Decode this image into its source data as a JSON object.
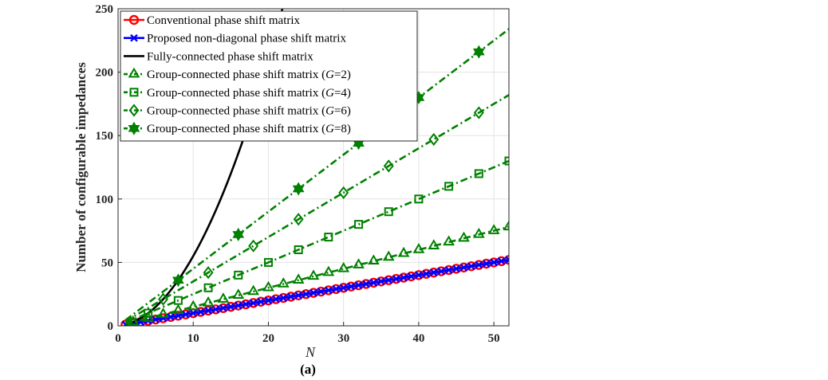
{
  "chart_data": {
    "type": "line",
    "caption": "(a)",
    "xlabel": "N",
    "ylabel": "Number of configurable impedances",
    "xlim": [
      0,
      52
    ],
    "ylim": [
      0,
      250
    ],
    "xticks": [
      "0",
      "10",
      "20",
      "30",
      "40",
      "50"
    ],
    "yticks": [
      "0",
      "50",
      "100",
      "150",
      "200",
      "250"
    ],
    "grid": true,
    "legend_position": "top-left",
    "series": [
      {
        "name": "Conventional phase shift matrix",
        "legend_prefix": "Conventional phase shift matrix",
        "legend_italic": "",
        "legend_suffix": "",
        "formula": "N",
        "color": "#ff0000",
        "marker": "circle",
        "line": "solid",
        "step": 1,
        "x_start": 1,
        "x_end": 52
      },
      {
        "name": "Proposed non-diagonal phase shift matrix",
        "legend_prefix": "Proposed non-diagonal phase shift matrix",
        "legend_italic": "",
        "legend_suffix": "",
        "formula": "N",
        "color": "#0000ff",
        "marker": "x",
        "line": "solid",
        "step": 1,
        "x_start": 1,
        "x_end": 52
      },
      {
        "name": "Fully-connected phase shift matrix",
        "legend_prefix": "Fully-connected phase shift matrix",
        "legend_italic": "",
        "legend_suffix": "",
        "formula": "N(N+1)/2",
        "color": "#000000",
        "marker": "none",
        "line": "solid",
        "step": 1,
        "x_start": 1,
        "x_end": 52
      },
      {
        "name": "Group-connected phase shift matrix (G=2)",
        "legend_prefix": "Group-connected phase shift matrix (",
        "legend_italic": "G",
        "legend_suffix": "=2)",
        "formula": "N(G+1)/2",
        "G": 2,
        "color": "#008000",
        "marker": "triangle",
        "line": "dashdot",
        "step": 2,
        "x_start": 2,
        "x_end": 52
      },
      {
        "name": "Group-connected phase shift matrix (G=4)",
        "legend_prefix": "Group-connected phase shift matrix (",
        "legend_italic": "G",
        "legend_suffix": "=4)",
        "formula": "N(G+1)/2",
        "G": 4,
        "color": "#008000",
        "marker": "square",
        "line": "dashdot",
        "step": 4,
        "x_start": 4,
        "x_end": 52
      },
      {
        "name": "Group-connected phase shift matrix (G=6)",
        "legend_prefix": "Group-connected phase shift matrix (",
        "legend_italic": "G",
        "legend_suffix": "=6)",
        "formula": "N(G+1)/2",
        "G": 6,
        "color": "#008000",
        "marker": "diamond",
        "line": "dashdot",
        "step": 6,
        "x_start": 6,
        "x_end": 52
      },
      {
        "name": "Group-connected phase shift matrix (G=8)",
        "legend_prefix": "Group-connected phase shift matrix (",
        "legend_italic": "G",
        "legend_suffix": "=8)",
        "formula": "N(G+1)/2",
        "G": 8,
        "color": "#008000",
        "marker": "hexagram",
        "line": "dashdot",
        "step": 8,
        "x_start": 8,
        "x_end": 52
      }
    ]
  }
}
